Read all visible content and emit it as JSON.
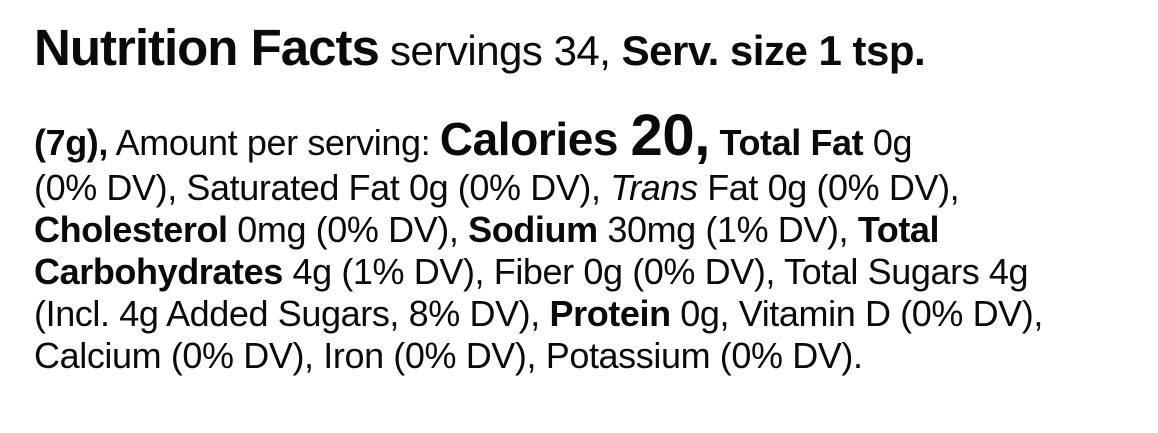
{
  "page": {
    "background_color": "#ffffff",
    "text_color": "#0a0a0a"
  },
  "label": {
    "header_segments": [
      {
        "t": "Nutrition Facts",
        "s": "title"
      },
      {
        "t": " ",
        "s": "subtitle-regular"
      },
      {
        "t": "servings 34, ",
        "s": "subtitle-regular"
      },
      {
        "t": "Serv. size 1 tsp.",
        "s": "subtitle-bold"
      }
    ],
    "body_segments": [
      {
        "t": "(7g),",
        "s": "bold"
      },
      {
        "t": " Amount per serving: ",
        "s": "regular"
      },
      {
        "t": "Calories ",
        "s": "calories-label"
      },
      {
        "t": "20,",
        "s": "calories-value"
      },
      {
        "t": " ",
        "s": "regular"
      },
      {
        "t": "Total Fat",
        "s": "bold"
      },
      {
        "t": " 0g",
        "s": "regular"
      },
      {
        "br": true
      },
      {
        "t": "(0% DV), Saturated Fat 0g (0% DV), ",
        "s": "regular"
      },
      {
        "t": "Trans",
        "s": "italic"
      },
      {
        "t": " Fat 0g (0% DV),",
        "s": "regular"
      },
      {
        "br": true
      },
      {
        "t": "Cholesterol",
        "s": "bold"
      },
      {
        "t": " 0mg (0% DV), ",
        "s": "regular"
      },
      {
        "t": "Sodium",
        "s": "bold"
      },
      {
        "t": " 30mg (1% DV), ",
        "s": "regular"
      },
      {
        "t": "Total",
        "s": "bold"
      },
      {
        "br": true
      },
      {
        "t": "Carbohydrates",
        "s": "bold"
      },
      {
        "t": " 4g (1% DV), Fiber 0g (0% DV), Total Sugars 4g",
        "s": "regular"
      },
      {
        "br": true
      },
      {
        "t": "(Incl. 4g Added Sugars, 8% DV), ",
        "s": "regular"
      },
      {
        "t": "Protein",
        "s": "bold"
      },
      {
        "t": " 0g, Vitamin D (0% DV),",
        "s": "regular"
      },
      {
        "br": true
      },
      {
        "t": "Calcium (0% DV), Iron (0% DV), Potassium (0% DV).",
        "s": "regular"
      }
    ],
    "nutrition": {
      "title": "Nutrition Facts",
      "servings_per_container": "34",
      "serving_size": "1 tsp. (7g)",
      "amount_per_serving_label": "Amount per serving:",
      "calories": "20",
      "total_fat": "0g (0% DV)",
      "saturated_fat": "0g (0% DV)",
      "trans_fat": "0g (0% DV)",
      "cholesterol": "0mg (0% DV)",
      "sodium": "30mg (1% DV)",
      "total_carbohydrates": "4g (1% DV)",
      "fiber": "0g (0% DV)",
      "total_sugars": "4g",
      "added_sugars": "Incl. 4g Added Sugars, 8% DV",
      "protein": "0g",
      "vitamin_d": "(0% DV)",
      "calcium": "(0% DV)",
      "iron": "(0% DV)",
      "potassium": "(0% DV)"
    }
  }
}
